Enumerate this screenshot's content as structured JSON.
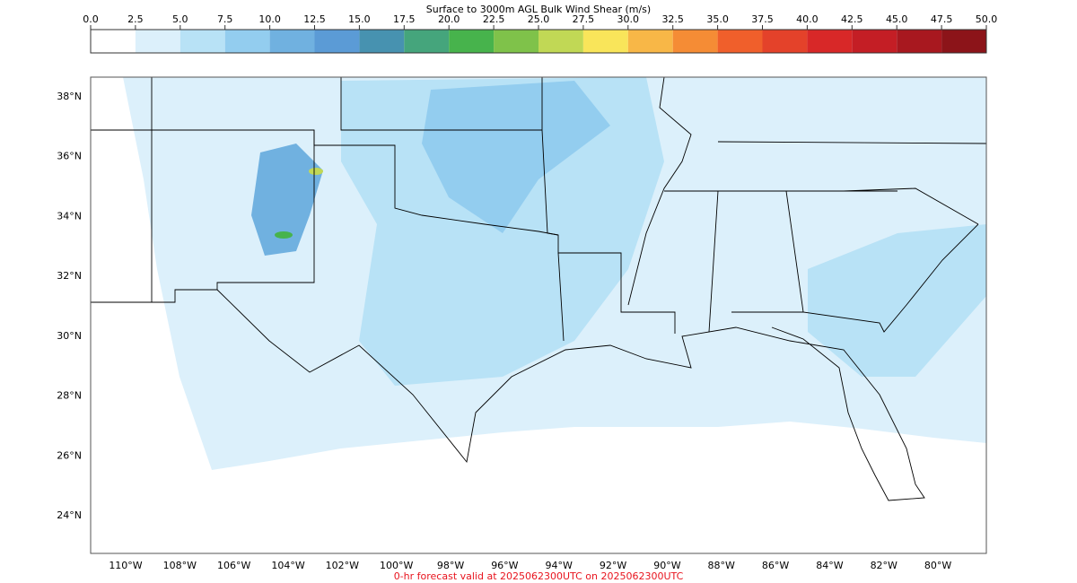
{
  "colorbar": {
    "title": "Surface to 3000m AGL Bulk Wind Shear (m/s)",
    "lim": [
      0,
      50
    ],
    "ticks": [
      {
        "value": 0,
        "label": "0.0"
      },
      {
        "value": 2.5,
        "label": "2.5"
      },
      {
        "value": 5,
        "label": "5.0"
      },
      {
        "value": 7.5,
        "label": "7.5"
      },
      {
        "value": 10,
        "label": "10.0"
      },
      {
        "value": 12.5,
        "label": "12.5"
      },
      {
        "value": 15,
        "label": "15.0"
      },
      {
        "value": 17.5,
        "label": "17.5"
      },
      {
        "value": 20,
        "label": "20.0"
      },
      {
        "value": 22.5,
        "label": "22.5"
      },
      {
        "value": 25,
        "label": "25.0"
      },
      {
        "value": 27.5,
        "label": "27.5"
      },
      {
        "value": 30,
        "label": "30.0"
      },
      {
        "value": 32.5,
        "label": "32.5"
      },
      {
        "value": 35,
        "label": "35.0"
      },
      {
        "value": 37.5,
        "label": "37.5"
      },
      {
        "value": 40,
        "label": "40.0"
      },
      {
        "value": 42.5,
        "label": "42.5"
      },
      {
        "value": 45,
        "label": "45.0"
      },
      {
        "value": 47.5,
        "label": "47.5"
      },
      {
        "value": 50,
        "label": "50.0"
      }
    ],
    "colors": [
      "#ffffff",
      "#dcf0fb",
      "#b8e2f6",
      "#93cdef",
      "#70b1e0",
      "#5b9bd6",
      "#4792b0",
      "#45a57c",
      "#47b34c",
      "#7fc24a",
      "#c1d855",
      "#f9e55a",
      "#f8b747",
      "#f58c35",
      "#f05f2b",
      "#e4422a",
      "#d82828",
      "#c41e25",
      "#a8181f",
      "#8c1419"
    ]
  },
  "map": {
    "lat_ticks": [
      {
        "value": 38,
        "label": "38°N"
      },
      {
        "value": 36,
        "label": "36°N"
      },
      {
        "value": 34,
        "label": "34°N"
      },
      {
        "value": 32,
        "label": "32°N"
      },
      {
        "value": 30,
        "label": "30°N"
      },
      {
        "value": 28,
        "label": "28°N"
      },
      {
        "value": 26,
        "label": "26°N"
      },
      {
        "value": 24,
        "label": "24°N"
      }
    ],
    "lon_ticks": [
      {
        "value": -110,
        "label": "110°W"
      },
      {
        "value": -108,
        "label": "108°W"
      },
      {
        "value": -106,
        "label": "106°W"
      },
      {
        "value": -104,
        "label": "104°W"
      },
      {
        "value": -102,
        "label": "102°W"
      },
      {
        "value": -100,
        "label": "100°W"
      },
      {
        "value": -98,
        "label": "98°W"
      },
      {
        "value": -96,
        "label": "96°W"
      },
      {
        "value": -94,
        "label": "94°W"
      },
      {
        "value": -92,
        "label": "92°W"
      },
      {
        "value": -90,
        "label": "90°W"
      },
      {
        "value": -88,
        "label": "88°W"
      },
      {
        "value": -86,
        "label": "86°W"
      },
      {
        "value": -84,
        "label": "84°W"
      },
      {
        "value": -82,
        "label": "82°W"
      },
      {
        "value": -80,
        "label": "80°W"
      }
    ]
  },
  "footer": "0-hr forecast valid at 2025062300UTC on 2025062300UTC"
}
